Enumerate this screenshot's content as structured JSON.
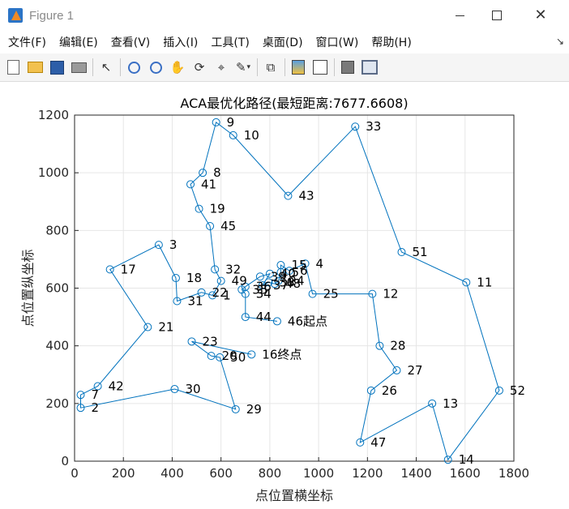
{
  "window": {
    "title": "Figure 1",
    "controls": {
      "minimize": "—",
      "maximize": "□",
      "close": "✕"
    }
  },
  "menu": {
    "items": [
      "文件(F)",
      "编辑(E)",
      "查看(V)",
      "插入(I)",
      "工具(T)",
      "桌面(D)",
      "窗口(W)",
      "帮助(H)"
    ],
    "overflow": "↘"
  },
  "toolbar": {
    "icons": [
      "new-file-icon",
      "open-folder-icon",
      "save-icon",
      "print-icon",
      "pointer-icon",
      "zoom-in-icon",
      "zoom-out-icon",
      "pan-hand-icon",
      "rotate-3d-icon",
      "data-cursor-icon",
      "brush-icon",
      "link-plot-icon",
      "colorbar-icon",
      "legend-icon",
      "hide-plot-tools-icon",
      "show-plot-tools-icon"
    ]
  },
  "colors": {
    "route_line": "#0072bd",
    "axes_background": "#ffffff",
    "grid": "#e6e6e6"
  },
  "chart_data": {
    "type": "line",
    "title": "ACA最优化路径(最短距离:7677.6608)",
    "xlabel": "点位置横坐标",
    "ylabel": "点位置纵坐标",
    "xlim": [
      0,
      1800
    ],
    "ylim": [
      0,
      1200
    ],
    "xticks": [
      0,
      200,
      400,
      600,
      800,
      1000,
      1200,
      1400,
      1600,
      1800
    ],
    "yticks": [
      0,
      200,
      400,
      600,
      800,
      1000,
      1200
    ],
    "grid": true,
    "marker": "open-circle",
    "start_label": "起点",
    "end_label": "终点",
    "points": [
      {
        "id": 1,
        "x": 565,
        "y": 575
      },
      {
        "id": 2,
        "x": 25,
        "y": 185
      },
      {
        "id": 3,
        "x": 345,
        "y": 750
      },
      {
        "id": 4,
        "x": 945,
        "y": 685
      },
      {
        "id": 5,
        "x": 845,
        "y": 655
      },
      {
        "id": 6,
        "x": 880,
        "y": 660
      },
      {
        "id": 7,
        "x": 25,
        "y": 230
      },
      {
        "id": 8,
        "x": 525,
        "y": 1000
      },
      {
        "id": 9,
        "x": 580,
        "y": 1175
      },
      {
        "id": 10,
        "x": 650,
        "y": 1130
      },
      {
        "id": 11,
        "x": 1605,
        "y": 620
      },
      {
        "id": 12,
        "x": 1220,
        "y": 580
      },
      {
        "id": 13,
        "x": 1465,
        "y": 200
      },
      {
        "id": 14,
        "x": 1530,
        "y": 5
      },
      {
        "id": 15,
        "x": 845,
        "y": 680
      },
      {
        "id": 16,
        "x": 725,
        "y": 370
      },
      {
        "id": 17,
        "x": 145,
        "y": 665
      },
      {
        "id": 18,
        "x": 415,
        "y": 635
      },
      {
        "id": 19,
        "x": 510,
        "y": 875
      },
      {
        "id": 20,
        "x": 560,
        "y": 365
      },
      {
        "id": 21,
        "x": 300,
        "y": 465
      },
      {
        "id": 22,
        "x": 520,
        "y": 585
      },
      {
        "id": 23,
        "x": 480,
        "y": 415
      },
      {
        "id": 24,
        "x": 835,
        "y": 625
      },
      {
        "id": 25,
        "x": 975,
        "y": 580
      },
      {
        "id": 26,
        "x": 1215,
        "y": 245
      },
      {
        "id": 27,
        "x": 1320,
        "y": 315
      },
      {
        "id": 28,
        "x": 1250,
        "y": 400
      },
      {
        "id": 29,
        "x": 660,
        "y": 180
      },
      {
        "id": 30,
        "x": 410,
        "y": 250
      },
      {
        "id": 31,
        "x": 420,
        "y": 555
      },
      {
        "id": 32,
        "x": 575,
        "y": 665
      },
      {
        "id": 33,
        "x": 1150,
        "y": 1160
      },
      {
        "id": 34,
        "x": 700,
        "y": 580
      },
      {
        "id": 35,
        "x": 685,
        "y": 595
      },
      {
        "id": 36,
        "x": 700,
        "y": 605
      },
      {
        "id": 37,
        "x": 770,
        "y": 610
      },
      {
        "id": 38,
        "x": 795,
        "y": 620
      },
      {
        "id": 39,
        "x": 760,
        "y": 640
      },
      {
        "id": 40,
        "x": 800,
        "y": 650
      },
      {
        "id": 41,
        "x": 475,
        "y": 960
      },
      {
        "id": 42,
        "x": 95,
        "y": 260
      },
      {
        "id": 43,
        "x": 875,
        "y": 920
      },
      {
        "id": 44,
        "x": 700,
        "y": 500
      },
      {
        "id": 45,
        "x": 555,
        "y": 815
      },
      {
        "id": 46,
        "x": 830,
        "y": 485
      },
      {
        "id": 47,
        "x": 1170,
        "y": 65
      },
      {
        "id": 48,
        "x": 820,
        "y": 615
      },
      {
        "id": 49,
        "x": 600,
        "y": 625
      },
      {
        "id": 50,
        "x": 595,
        "y": 360
      },
      {
        "id": 51,
        "x": 1340,
        "y": 725
      },
      {
        "id": 52,
        "x": 1740,
        "y": 245
      }
    ],
    "route": [
      46,
      44,
      34,
      35,
      36,
      39,
      40,
      37,
      38,
      48,
      24,
      5,
      15,
      6,
      4,
      25,
      12,
      28,
      27,
      26,
      47,
      13,
      14,
      52,
      11,
      51,
      33,
      43,
      10,
      9,
      8,
      41,
      19,
      45,
      32,
      49,
      1,
      22,
      31,
      18,
      3,
      17,
      21,
      42,
      7,
      2,
      30,
      29,
      50,
      20,
      23,
      16
    ]
  }
}
